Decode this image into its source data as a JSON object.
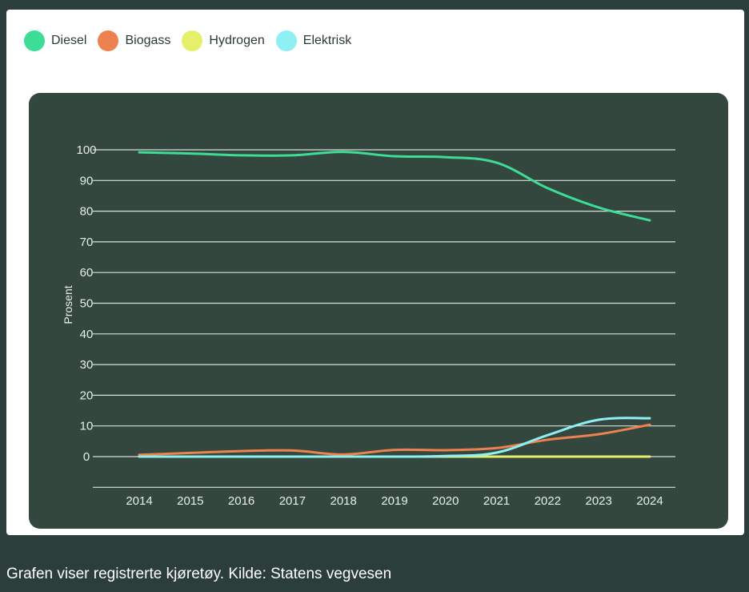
{
  "caption": "Grafen viser registrerte kjøretøy. Kilde: Statens vegvesen",
  "colors": {
    "page_background": "#2c3e3b",
    "plot_background": "#33473f",
    "grid": "#d9e0dc",
    "tick_text": "#e8eeeb"
  },
  "chart_data": {
    "type": "line",
    "title": "",
    "xlabel": "",
    "ylabel": "Prosent",
    "ylim": [
      -10,
      100
    ],
    "yticks": [
      0,
      10,
      20,
      30,
      40,
      50,
      60,
      70,
      80,
      90,
      100
    ],
    "grid": true,
    "legend_position": "top-left",
    "x": [
      2014,
      2015,
      2016,
      2017,
      2018,
      2019,
      2020,
      2021,
      2022,
      2023,
      2024
    ],
    "series": [
      {
        "name": "Diesel",
        "color": "#3ddc97",
        "values": [
          99.2,
          98.8,
          98.2,
          98.2,
          99.3,
          97.9,
          97.6,
          95.8,
          87.5,
          81.2,
          77.0
        ]
      },
      {
        "name": "Biogass",
        "color": "#ee8150",
        "values": [
          0.6,
          1.2,
          1.8,
          2.0,
          0.7,
          2.2,
          2.1,
          2.8,
          5.5,
          7.3,
          10.4
        ]
      },
      {
        "name": "Hydrogen",
        "color": "#e6ef6a",
        "values": [
          0.0,
          0.0,
          0.0,
          0.0,
          0.0,
          0.0,
          0.0,
          0.0,
          0.0,
          0.0,
          0.0
        ]
      },
      {
        "name": "Elektrisk",
        "color": "#8ef0f2",
        "values": [
          0.0,
          0.0,
          0.0,
          0.0,
          0.0,
          0.0,
          0.2,
          1.3,
          7.0,
          12.0,
          12.5
        ]
      }
    ]
  }
}
